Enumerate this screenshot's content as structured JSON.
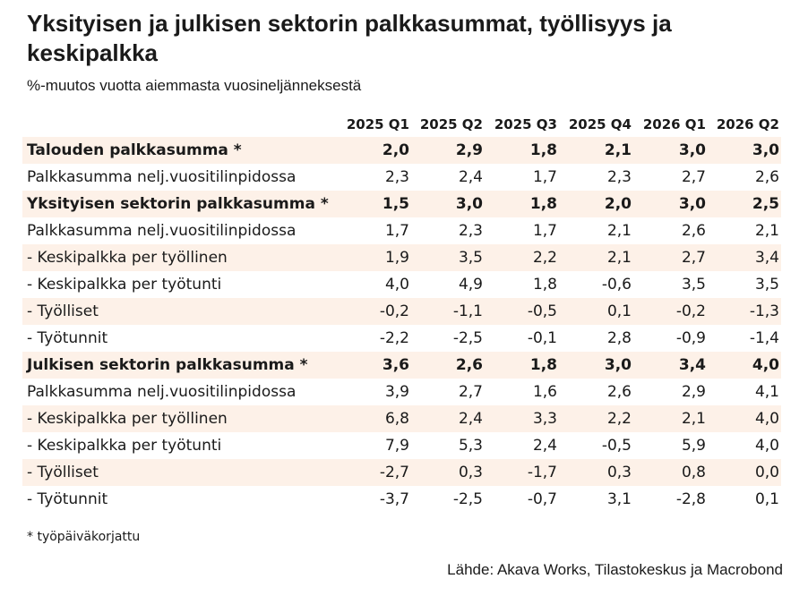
{
  "chart_data": {
    "type": "table",
    "title": "Yksityisen ja julkisen sektorin palkkasummat, työllisyys ja keskipalkka",
    "subtitle": "%-muutos vuotta aiemmasta vuosineljänneksestä",
    "columns": [
      "2025 Q1",
      "2025 Q2",
      "2025 Q3",
      "2025 Q4",
      "2026 Q1",
      "2026 Q2"
    ],
    "rows": [
      {
        "label": "Talouden palkkasumma *",
        "bold": true,
        "shaded": true,
        "values": [
          "2,0",
          "2,9",
          "1,8",
          "2,1",
          "3,0",
          "3,0"
        ]
      },
      {
        "label": "Palkkasumma nelj.vuositilinpidossa",
        "bold": false,
        "shaded": false,
        "values": [
          "2,3",
          "2,4",
          "1,7",
          "2,3",
          "2,7",
          "2,6"
        ]
      },
      {
        "label": "Yksityisen sektorin palkkasumma *",
        "bold": true,
        "shaded": true,
        "values": [
          "1,5",
          "3,0",
          "1,8",
          "2,0",
          "3,0",
          "2,5"
        ]
      },
      {
        "label": "Palkkasumma nelj.vuositilinpidossa",
        "bold": false,
        "shaded": false,
        "values": [
          "1,7",
          "2,3",
          "1,7",
          "2,1",
          "2,6",
          "2,1"
        ]
      },
      {
        "label": "- Keskipalkka per työllinen",
        "bold": false,
        "shaded": true,
        "values": [
          "1,9",
          "3,5",
          "2,2",
          "2,1",
          "2,7",
          "3,4"
        ]
      },
      {
        "label": "- Keskipalkka per työtunti",
        "bold": false,
        "shaded": false,
        "values": [
          "4,0",
          "4,9",
          "1,8",
          "-0,6",
          "3,5",
          "3,5"
        ]
      },
      {
        "label": "- Työlliset",
        "bold": false,
        "shaded": true,
        "values": [
          "-0,2",
          "-1,1",
          "-0,5",
          "0,1",
          "-0,2",
          "-1,3"
        ]
      },
      {
        "label": "- Työtunnit",
        "bold": false,
        "shaded": false,
        "values": [
          "-2,2",
          "-2,5",
          "-0,1",
          "2,8",
          "-0,9",
          "-1,4"
        ]
      },
      {
        "label": "Julkisen sektorin palkkasumma *",
        "bold": true,
        "shaded": true,
        "values": [
          "3,6",
          "2,6",
          "1,8",
          "3,0",
          "3,4",
          "4,0"
        ]
      },
      {
        "label": "Palkkasumma nelj.vuositilinpidossa",
        "bold": false,
        "shaded": false,
        "values": [
          "3,9",
          "2,7",
          "1,6",
          "2,6",
          "2,9",
          "4,1"
        ]
      },
      {
        "label": "- Keskipalkka per työllinen",
        "bold": false,
        "shaded": true,
        "values": [
          "6,8",
          "2,4",
          "3,3",
          "2,2",
          "2,1",
          "4,0"
        ]
      },
      {
        "label": "- Keskipalkka per työtunti",
        "bold": false,
        "shaded": false,
        "values": [
          "7,9",
          "5,3",
          "2,4",
          "-0,5",
          "5,9",
          "4,0"
        ]
      },
      {
        "label": "- Työlliset",
        "bold": false,
        "shaded": true,
        "values": [
          "-2,7",
          "0,3",
          "-1,7",
          "0,3",
          "0,8",
          "0,0"
        ]
      },
      {
        "label": "- Työtunnit",
        "bold": false,
        "shaded": false,
        "values": [
          "-3,7",
          "-2,5",
          "-0,7",
          "3,1",
          "-2,8",
          "0,1"
        ]
      }
    ],
    "footnote": "* työpäiväkorjattu",
    "source": "Lähde: Akava Works, Tilastokeskus ja Macrobond",
    "shade_color": "#fdf1e8"
  }
}
